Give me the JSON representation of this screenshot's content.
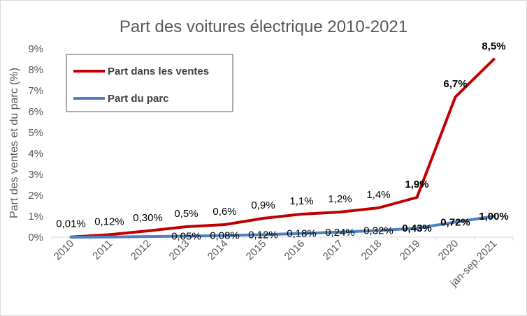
{
  "chart_data": {
    "type": "line",
    "title": "Part des voitures électrique 2010-2021",
    "xlabel": "",
    "ylabel": "Part des ventes et du parc (%)",
    "categories": [
      "2010",
      "2011",
      "2012",
      "2013",
      "2014",
      "2015",
      "2016",
      "2017",
      "2018",
      "2019",
      "2020",
      "jan-sep.2021"
    ],
    "ylim": [
      0,
      9
    ],
    "yticks": [
      "0%",
      "1%",
      "2%",
      "3%",
      "4%",
      "5%",
      "6%",
      "7%",
      "8%",
      "9%"
    ],
    "grid": false,
    "legend_position": "top-left",
    "series": [
      {
        "name": "Part dans les ventes",
        "color": "#c00000",
        "values": [
          0.01,
          0.12,
          0.3,
          0.5,
          0.6,
          0.9,
          1.1,
          1.2,
          1.4,
          1.9,
          6.7,
          8.5
        ],
        "labels": [
          "0,01%",
          "0,12%",
          "0,30%",
          "0,5%",
          "0,6%",
          "0,9%",
          "1,1%",
          "1,2%",
          "1,4%",
          "1,9%",
          "6,7%",
          "8,5%"
        ],
        "bold": [
          false,
          false,
          false,
          false,
          false,
          false,
          false,
          false,
          false,
          true,
          true,
          true
        ]
      },
      {
        "name": "Part du parc",
        "color": "#4f81bd",
        "values": [
          0,
          0.01,
          0.03,
          0.05,
          0.08,
          0.12,
          0.18,
          0.24,
          0.32,
          0.43,
          0.72,
          1.0
        ],
        "labels": [
          "",
          "",
          "",
          "0,05%",
          "0,08%",
          "0,12%",
          "0,18%",
          "0,24%",
          "0,32%",
          "0,43%",
          "0,72%",
          "1,00%"
        ],
        "bold": [
          false,
          false,
          false,
          false,
          false,
          false,
          false,
          false,
          false,
          true,
          true,
          true
        ]
      }
    ]
  }
}
